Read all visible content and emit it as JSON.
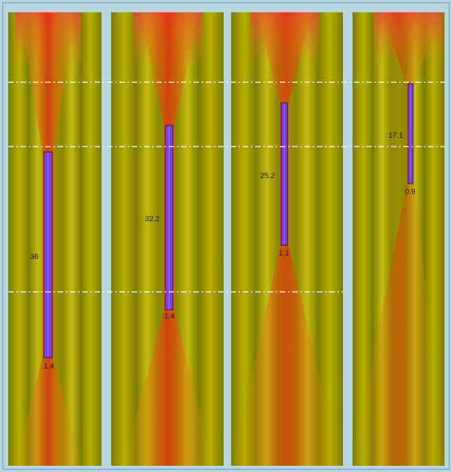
{
  "panels": [
    {
      "length_label": "36",
      "width_label": "1.4"
    },
    {
      "length_label": "32.2",
      "width_label": "1.4"
    },
    {
      "length_label": "25.2",
      "width_label": "1.1"
    },
    {
      "length_label": "17.1",
      "width_label": "0.9"
    }
  ]
}
